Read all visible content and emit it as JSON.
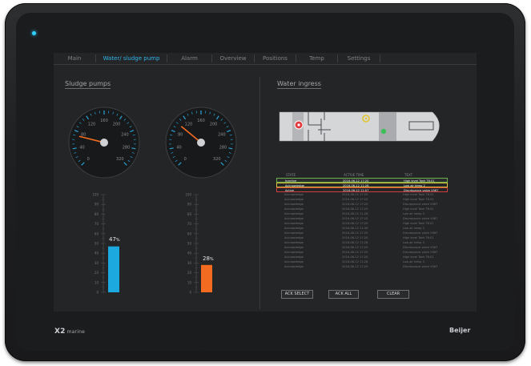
{
  "brand": {
    "left": "X2",
    "left_suffix": "marine",
    "right": "Beijer"
  },
  "tabs": [
    {
      "label": "Main",
      "active": false
    },
    {
      "label": "Water/ sludge pump",
      "active": true
    },
    {
      "label": "Alarm",
      "active": false
    },
    {
      "label": "Overview",
      "active": false
    },
    {
      "label": "Positions",
      "active": false
    },
    {
      "label": "Temp",
      "active": false
    },
    {
      "label": "Settings",
      "active": false
    }
  ],
  "left_panel": {
    "title": "Sludge pumps",
    "gauges": [
      {
        "name": "gauge-1",
        "ticks": [
          "0",
          "40",
          "80",
          "120",
          "160",
          "200",
          "240",
          "280",
          "320"
        ],
        "value": 70
      },
      {
        "name": "gauge-2",
        "ticks": [
          "0",
          "40",
          "80",
          "120",
          "160",
          "200",
          "240",
          "280",
          "320"
        ],
        "value": 100
      }
    ],
    "bars": [
      {
        "percent": 47,
        "percent_text": "47",
        "unit": "%",
        "color": "#1ba9df",
        "scale": [
          "100",
          "90",
          "80",
          "70",
          "60",
          "50",
          "40",
          "30",
          "20",
          "10",
          "0"
        ]
      },
      {
        "percent": 28,
        "percent_text": "28",
        "unit": "%",
        "color": "#f26b21",
        "scale": [
          "100",
          "90",
          "80",
          "70",
          "60",
          "50",
          "40",
          "30",
          "20",
          "10",
          "0"
        ]
      }
    ]
  },
  "right_panel": {
    "title": "Water ingress",
    "table": {
      "headers": {
        "state": "STATE",
        "time": "ACTIVE TIME",
        "text": "TEXT"
      },
      "rows": [
        {
          "state": "Inactive",
          "time": "2016-06-12 17:20",
          "text": "High level Tank T6.01",
          "kind": "inactive"
        },
        {
          "state": "Acknowledge",
          "time": "2016-06-12 11:26",
          "text": "Low air temp 2",
          "kind": "ack"
        },
        {
          "state": "Active",
          "time": "2016-06-12 11:07",
          "text": "Discrepance valve V067",
          "kind": "active"
        },
        {
          "state": "Acknowledge",
          "time": "2016-06-12 17:20",
          "text": "High level Tank T6.01",
          "kind": "normal"
        },
        {
          "state": "Acknowledge",
          "time": "2016-06-12 17:20",
          "text": "High level Tank T6.01",
          "kind": "normal"
        },
        {
          "state": "Acknowledge",
          "time": "2016-06-12 17:20",
          "text": "Discrepance valve V067",
          "kind": "normal"
        },
        {
          "state": "Acknowledge",
          "time": "2016-06-12 17:20",
          "text": "High level Tank T6.01",
          "kind": "normal"
        },
        {
          "state": "Acknowledge",
          "time": "2016-06-12 11:26",
          "text": "Low air temp 3",
          "kind": "normal"
        },
        {
          "state": "Acknowledge",
          "time": "2016-06-12 17:20",
          "text": "Discrepance valve V067",
          "kind": "normal"
        },
        {
          "state": "Acknowledge",
          "time": "2016-06-12 17:20",
          "text": "High level Tank T6.01",
          "kind": "normal"
        },
        {
          "state": "Acknowledge",
          "time": "2016-06-12 11:39",
          "text": "Low air temp 2",
          "kind": "normal"
        },
        {
          "state": "Acknowledge",
          "time": "2016-06-12 17:20",
          "text": "Discrepance valve V067",
          "kind": "normal"
        },
        {
          "state": "Acknowledge",
          "time": "2016-06-12 17:20",
          "text": "High level Tank T6.01",
          "kind": "normal"
        },
        {
          "state": "Acknowledge",
          "time": "2016-06-12 11:26",
          "text": "Low air temp 3",
          "kind": "normal"
        },
        {
          "state": "Acknowledge",
          "time": "2016-06-12 17:20",
          "text": "Discrepance valve V067",
          "kind": "normal"
        },
        {
          "state": "Acknowledge",
          "time": "2016-06-12 17:20",
          "text": "Discrepance valve V067",
          "kind": "normal"
        },
        {
          "state": "Acknowledge",
          "time": "2016-06-12 17:20",
          "text": "High level Tank T6.01",
          "kind": "normal"
        },
        {
          "state": "Acknowledge",
          "time": "2016-06-12 11:26",
          "text": "Low air temp 3",
          "kind": "normal"
        },
        {
          "state": "Acknowledge",
          "time": "2016-06-12 17:20",
          "text": "Discrepance valve V067",
          "kind": "normal"
        }
      ]
    },
    "buttons": {
      "ack_select": "ACK SELECT",
      "ack_all": "ACK ALL",
      "clear": "CLEAR"
    }
  },
  "colors": {
    "accent": "#31b4ea",
    "cyan_bar": "#1ba9df",
    "orange_bar": "#f26b21",
    "ok": "#3fbf5a",
    "warn": "#e3c52c",
    "alarm": "#e0393e"
  }
}
